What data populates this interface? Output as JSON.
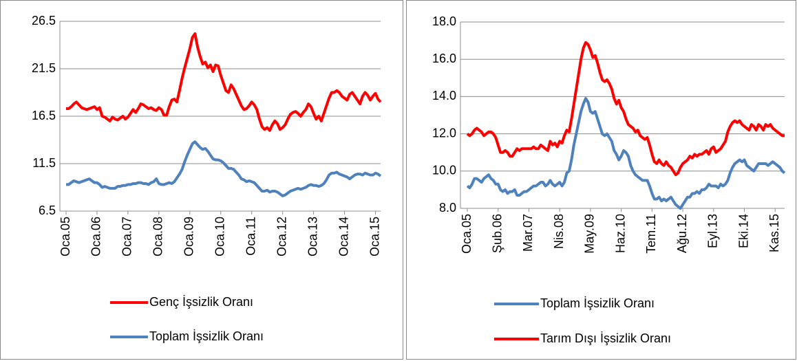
{
  "chart_data": [
    {
      "type": "line",
      "categories": [
        "Oca.05",
        null,
        null,
        null,
        null,
        null,
        null,
        null,
        null,
        null,
        null,
        null,
        "Oca.06",
        null,
        null,
        null,
        null,
        null,
        null,
        null,
        null,
        null,
        null,
        null,
        "Oca.07",
        null,
        null,
        null,
        null,
        null,
        null,
        null,
        null,
        null,
        null,
        null,
        "Oca.08",
        null,
        null,
        null,
        null,
        null,
        null,
        null,
        null,
        null,
        null,
        null,
        "Oca.09",
        null,
        null,
        null,
        null,
        null,
        null,
        null,
        null,
        null,
        null,
        null,
        "Oca.10",
        null,
        null,
        null,
        null,
        null,
        null,
        null,
        null,
        null,
        null,
        null,
        "Oca.11",
        null,
        null,
        null,
        null,
        null,
        null,
        null,
        null,
        null,
        null,
        null,
        "Oca.12",
        null,
        null,
        null,
        null,
        null,
        null,
        null,
        null,
        null,
        null,
        null,
        "Oca.13",
        null,
        null,
        null,
        null,
        null,
        null,
        null,
        null,
        null,
        null,
        null,
        "Oca.14",
        null,
        null,
        null,
        null,
        null,
        null,
        null,
        null,
        null,
        null,
        null,
        "Oca.15",
        null,
        null
      ],
      "series": [
        {
          "name": "Genç İşsizlik Oranı",
          "color": "#ff0000",
          "values": [
            17.3,
            17.3,
            17.5,
            17.8,
            18.0,
            17.7,
            17.4,
            17.3,
            17.2,
            17.3,
            17.4,
            17.5,
            17.2,
            17.4,
            16.5,
            16.4,
            16.2,
            16.0,
            16.4,
            16.2,
            16.1,
            16.3,
            16.5,
            16.2,
            16.4,
            16.8,
            17.2,
            16.9,
            17.3,
            17.8,
            17.7,
            17.5,
            17.3,
            17.4,
            17.2,
            17.1,
            17.4,
            17.2,
            16.6,
            16.6,
            17.5,
            18.2,
            18.3,
            18.0,
            19.2,
            20.5,
            21.6,
            22.6,
            23.6,
            24.8,
            25.2,
            23.8,
            22.8,
            22.0,
            22.2,
            21.6,
            21.9,
            21.2,
            21.9,
            21.8,
            20.8,
            20.0,
            19.2,
            19.0,
            19.8,
            19.4,
            18.8,
            18.2,
            17.6,
            17.2,
            17.3,
            17.6,
            18.0,
            17.7,
            17.2,
            16.2,
            15.4,
            15.1,
            15.3,
            15.0,
            15.6,
            16.0,
            15.7,
            15.1,
            15.3,
            15.6,
            16.2,
            16.7,
            16.9,
            17.0,
            16.8,
            16.5,
            16.9,
            17.2,
            17.8,
            17.5,
            16.8,
            16.2,
            16.5,
            16.0,
            16.8,
            17.6,
            18.4,
            19.0,
            19.0,
            19.2,
            19.0,
            18.6,
            18.4,
            18.2,
            18.8,
            19.0,
            18.6,
            18.2,
            17.8,
            18.6,
            19.0,
            18.7,
            18.2,
            18.6,
            18.9,
            18.3,
            18.0
          ]
        },
        {
          "name": "Toplam İşsizlik Oranı",
          "color": "#4f81bd",
          "values": [
            9.3,
            9.3,
            9.5,
            9.7,
            9.6,
            9.5,
            9.6,
            9.7,
            9.8,
            9.9,
            9.7,
            9.5,
            9.5,
            9.3,
            9.0,
            9.1,
            9.0,
            8.9,
            8.9,
            8.9,
            9.1,
            9.1,
            9.2,
            9.2,
            9.3,
            9.3,
            9.4,
            9.4,
            9.5,
            9.5,
            9.4,
            9.4,
            9.3,
            9.5,
            9.6,
            9.9,
            9.4,
            9.3,
            9.3,
            9.4,
            9.5,
            9.4,
            9.6,
            10.0,
            10.4,
            10.9,
            11.7,
            12.4,
            13.0,
            13.6,
            13.8,
            13.5,
            13.2,
            13.0,
            13.1,
            12.8,
            12.4,
            12.0,
            11.9,
            11.9,
            11.8,
            11.6,
            11.3,
            11.0,
            11.0,
            10.9,
            10.6,
            10.3,
            9.9,
            9.8,
            9.6,
            9.7,
            9.6,
            9.5,
            9.2,
            8.9,
            8.6,
            8.6,
            8.7,
            8.5,
            8.6,
            8.6,
            8.5,
            8.3,
            8.1,
            8.2,
            8.4,
            8.6,
            8.7,
            8.8,
            8.9,
            8.8,
            8.9,
            9.0,
            9.2,
            9.3,
            9.2,
            9.2,
            9.1,
            9.2,
            9.4,
            9.8,
            10.3,
            10.5,
            10.5,
            10.6,
            10.4,
            10.3,
            10.2,
            10.1,
            9.9,
            10.1,
            10.3,
            10.4,
            10.4,
            10.3,
            10.5,
            10.4,
            10.3,
            10.3,
            10.5,
            10.4,
            10.2
          ]
        }
      ],
      "ylim": [
        6.5,
        26.5
      ],
      "yticks": [
        6.5,
        11.5,
        16.5,
        21.5,
        26.5
      ],
      "grid": true,
      "legend": "bottom"
    },
    {
      "type": "line",
      "categories": [
        "Oca.05",
        null,
        null,
        null,
        null,
        null,
        null,
        null,
        null,
        null,
        null,
        null,
        null,
        "Şub.06",
        null,
        null,
        null,
        null,
        null,
        null,
        null,
        null,
        null,
        null,
        null,
        null,
        "Mar.07",
        null,
        null,
        null,
        null,
        null,
        null,
        null,
        null,
        null,
        null,
        null,
        null,
        "Nis.08",
        null,
        null,
        null,
        null,
        null,
        null,
        null,
        null,
        null,
        null,
        null,
        null,
        "May.09",
        null,
        null,
        null,
        null,
        null,
        null,
        null,
        null,
        null,
        null,
        null,
        null,
        "Haz.10",
        null,
        null,
        null,
        null,
        null,
        null,
        null,
        null,
        null,
        null,
        null,
        null,
        "Tem.11",
        null,
        null,
        null,
        null,
        null,
        null,
        null,
        null,
        null,
        null,
        null,
        null,
        "Ağu.12",
        null,
        null,
        null,
        null,
        null,
        null,
        null,
        null,
        null,
        null,
        null,
        null,
        "Eyl.13",
        null,
        null,
        null,
        null,
        null,
        null,
        null,
        null,
        null,
        null,
        null,
        null,
        "Eki.14",
        null,
        null,
        null,
        null,
        null,
        null,
        null,
        null,
        null,
        null,
        null,
        null,
        "Kas.15",
        null,
        null,
        null,
        null
      ],
      "series": [
        {
          "name": "Toplam İşsizlik Oranı",
          "color": "#4f81bd",
          "values": [
            9.2,
            9.1,
            9.3,
            9.6,
            9.6,
            9.5,
            9.4,
            9.6,
            9.7,
            9.8,
            9.6,
            9.5,
            9.3,
            9.3,
            9.0,
            8.9,
            9.0,
            8.8,
            8.9,
            8.9,
            9.0,
            8.7,
            8.7,
            8.8,
            8.9,
            8.9,
            9.0,
            9.1,
            9.2,
            9.2,
            9.3,
            9.4,
            9.4,
            9.2,
            9.3,
            9.5,
            9.3,
            9.2,
            9.3,
            9.4,
            9.2,
            9.4,
            9.9,
            10.0,
            10.6,
            11.4,
            12.0,
            12.6,
            13.2,
            13.6,
            13.9,
            13.7,
            13.2,
            13.1,
            13.2,
            12.8,
            12.4,
            12.0,
            11.9,
            12.0,
            11.8,
            11.6,
            11.1,
            10.9,
            10.6,
            10.8,
            11.1,
            11.0,
            10.8,
            10.3,
            10.0,
            9.8,
            9.7,
            9.6,
            9.5,
            9.5,
            9.5,
            9.2,
            8.8,
            8.5,
            8.5,
            8.6,
            8.4,
            8.5,
            8.4,
            8.5,
            8.6,
            8.4,
            8.2,
            8.1,
            8.0,
            8.2,
            8.4,
            8.6,
            8.6,
            8.8,
            8.8,
            8.9,
            8.8,
            9.0,
            9.0,
            9.1,
            9.3,
            9.2,
            9.2,
            9.2,
            9.1,
            9.3,
            9.2,
            9.3,
            9.5,
            9.9,
            10.2,
            10.4,
            10.5,
            10.6,
            10.5,
            10.6,
            10.3,
            10.2,
            10.1,
            10.0,
            10.2,
            10.4,
            10.4,
            10.4,
            10.4,
            10.3,
            10.4,
            10.5,
            10.4,
            10.3,
            10.2,
            10.0,
            9.9
          ]
        },
        {
          "name": "Tarım Dışı İşsizlik Oranı",
          "color": "#ff0000",
          "values": [
            12.0,
            11.9,
            12.0,
            12.2,
            12.3,
            12.2,
            12.1,
            11.9,
            12.0,
            12.1,
            12.1,
            12.0,
            11.8,
            11.4,
            11.0,
            11.0,
            11.1,
            11.0,
            10.8,
            10.8,
            11.0,
            11.2,
            11.1,
            11.2,
            11.2,
            11.2,
            11.2,
            11.2,
            11.3,
            11.2,
            11.2,
            11.4,
            11.3,
            11.2,
            11.1,
            11.6,
            11.4,
            11.5,
            11.3,
            11.6,
            11.5,
            11.9,
            12.2,
            12.1,
            12.8,
            13.6,
            14.4,
            15.2,
            16.0,
            16.6,
            16.9,
            16.8,
            16.5,
            16.1,
            16.2,
            15.8,
            15.3,
            14.9,
            14.8,
            14.9,
            14.7,
            14.4,
            13.9,
            13.6,
            13.8,
            13.4,
            13.2,
            12.8,
            12.5,
            12.4,
            12.3,
            12.1,
            12.2,
            11.9,
            11.8,
            11.7,
            11.8,
            11.4,
            10.9,
            10.5,
            10.4,
            10.6,
            10.4,
            10.3,
            10.5,
            10.3,
            10.2,
            10.0,
            9.8,
            9.9,
            10.2,
            10.4,
            10.5,
            10.6,
            10.8,
            10.7,
            10.9,
            10.8,
            10.9,
            10.9,
            11.0,
            11.1,
            10.9,
            11.2,
            11.3,
            11.0,
            11.1,
            11.2,
            11.4,
            11.6,
            12.1,
            12.4,
            12.6,
            12.7,
            12.6,
            12.7,
            12.5,
            12.4,
            12.3,
            12.2,
            12.5,
            12.4,
            12.2,
            12.5,
            12.4,
            12.2,
            12.5,
            12.4,
            12.5,
            12.3,
            12.2,
            12.1,
            12.0,
            11.9,
            11.9
          ]
        }
      ],
      "ylim": [
        8,
        18
      ],
      "yticks": [
        {
          "value": 8,
          "label": "8.0"
        },
        {
          "value": 10,
          "label": "10.0"
        },
        {
          "value": 12,
          "label": "12.0"
        },
        {
          "value": 14,
          "label": "14.0"
        },
        {
          "value": 16,
          "label": "16.0"
        },
        {
          "value": 18,
          "label": "18.0"
        }
      ],
      "grid": true,
      "legend": "bottom"
    }
  ]
}
